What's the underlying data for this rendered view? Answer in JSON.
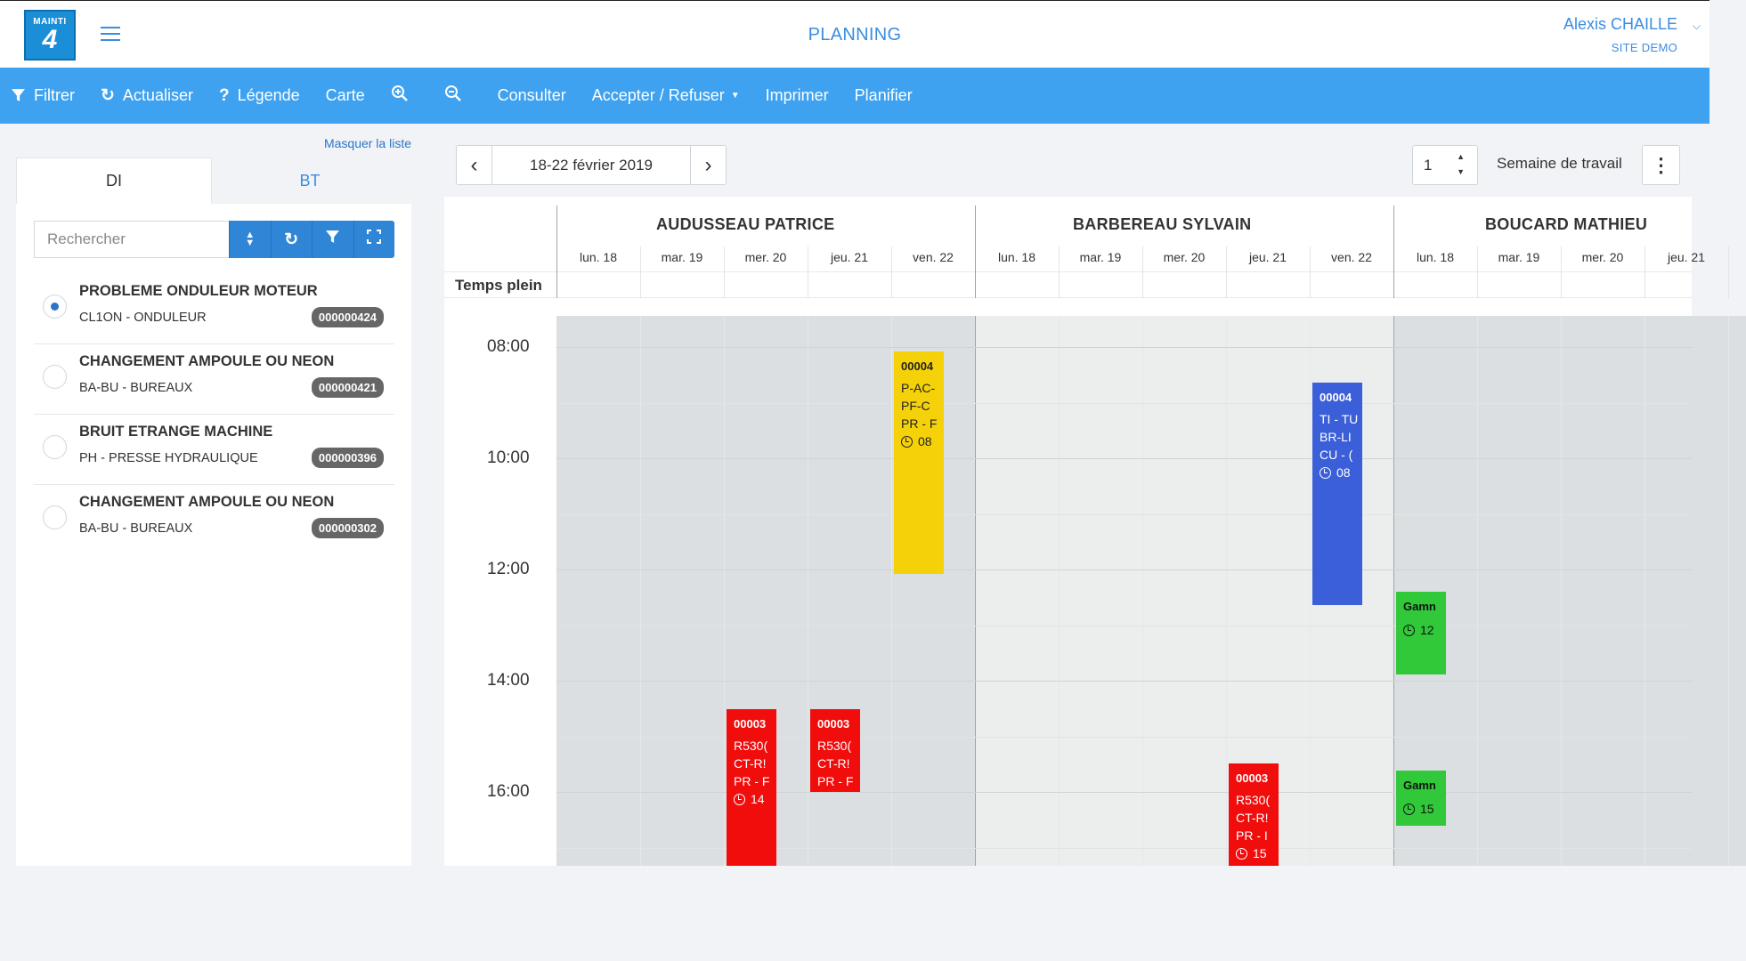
{
  "app": {
    "logo_line1": "MAINTI",
    "logo_line2": "4",
    "page_title": "PLANNING",
    "user_name": "Alexis CHAILLE",
    "site_name": "SITE DEMO"
  },
  "toolbar": {
    "filter": "Filtrer",
    "refresh": "Actualiser",
    "legend": "Légende",
    "map": "Carte",
    "consult": "Consulter",
    "accept_refuse": "Accepter / Refuser",
    "print": "Imprimer",
    "plan": "Planifier"
  },
  "sidebar": {
    "hide_list": "Masquer la liste",
    "tabs": [
      "DI",
      "BT"
    ],
    "search_placeholder": "Rechercher",
    "items": [
      {
        "title": "PROBLEME ONDULEUR MOTEUR",
        "subtitle": "CL1ON - ONDULEUR",
        "number": "000000424",
        "selected": true
      },
      {
        "title": "CHANGEMENT AMPOULE OU NEON",
        "subtitle": "BA-BU - BUREAUX",
        "number": "000000421",
        "selected": false
      },
      {
        "title": "BRUIT ETRANGE MACHINE",
        "subtitle": "PH - PRESSE HYDRAULIQUE",
        "number": "000000396",
        "selected": false
      },
      {
        "title": "CHANGEMENT AMPOULE OU NEON",
        "subtitle": "BA-BU - BUREAUX",
        "number": "000000302",
        "selected": false
      }
    ]
  },
  "planning": {
    "date_range": "18-22 février 2019",
    "week_count": "1",
    "week_mode": "Semaine de travail",
    "full_time_label": "Temps plein",
    "persons": [
      "AUDUSSEAU PATRICE",
      "BARBEREAU SYLVAIN",
      "BOUCARD MATHIEU"
    ],
    "days": [
      "lun. 18",
      "mar. 19",
      "mer. 20",
      "jeu. 21",
      "ven. 22",
      "lun. 18",
      "mar. 19",
      "mer. 20",
      "jeu. 21",
      "ven. 22",
      "lun. 18",
      "mar. 19",
      "mer. 20",
      "jeu. 21"
    ],
    "times": [
      "08:00",
      "10:00",
      "12:00",
      "14:00",
      "16:00"
    ],
    "events": [
      {
        "code": "00004",
        "lines": [
          "P-AC-",
          "PF-C",
          "PR - F"
        ],
        "time": "08",
        "color": "#f5d10a",
        "text_color": "#222"
      },
      {
        "code": "00004",
        "lines": [
          "TI - TU",
          "BR-LI",
          "CU - ("
        ],
        "time": "08",
        "color": "#3a5fd9",
        "text_color": "#fff"
      },
      {
        "code": "Gamn",
        "lines": [],
        "time": "12",
        "color": "#31c93a",
        "text_color": "#111"
      },
      {
        "code": "00003",
        "lines": [
          "R530(",
          "CT-R!",
          "PR - F"
        ],
        "time": "14",
        "color": "#f20d0d",
        "text_color": "#fff"
      },
      {
        "code": "00003",
        "lines": [
          "R530(",
          "CT-R!",
          "PR - F"
        ],
        "time": "",
        "color": "#f20d0d",
        "text_color": "#fff"
      },
      {
        "code": "00003",
        "lines": [
          "R530(",
          "CT-R!",
          "PR - I"
        ],
        "time": "15",
        "color": "#f20d0d",
        "text_color": "#fff"
      },
      {
        "code": "Gamn",
        "lines": [],
        "time": "15",
        "color": "#31c93a",
        "text_color": "#111"
      }
    ]
  }
}
